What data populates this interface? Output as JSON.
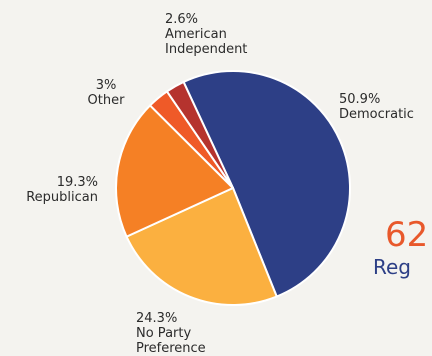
{
  "chart_data": {
    "type": "pie",
    "slices": [
      {
        "label": "Democratic",
        "value_label": "50.9%",
        "value": 50.9,
        "color": "#2d3f86"
      },
      {
        "label": "No Party Preference",
        "label_lines": [
          "No Party",
          "Preference"
        ],
        "value_label": "24.3%",
        "value": 24.3,
        "color": "#fbb040"
      },
      {
        "label": "Republican",
        "value_label": "19.3%",
        "value": 19.3,
        "color": "#f58025"
      },
      {
        "label": "Other",
        "value_label": "3%",
        "value": 3.0,
        "color": "#ef5a28"
      },
      {
        "label": "American Independent",
        "label_lines": [
          "American",
          "Independent"
        ],
        "value_label": "2.6%",
        "value": 2.6,
        "color": "#b5332e"
      }
    ]
  },
  "callout": {
    "number": "62",
    "caption": "Reg"
  }
}
